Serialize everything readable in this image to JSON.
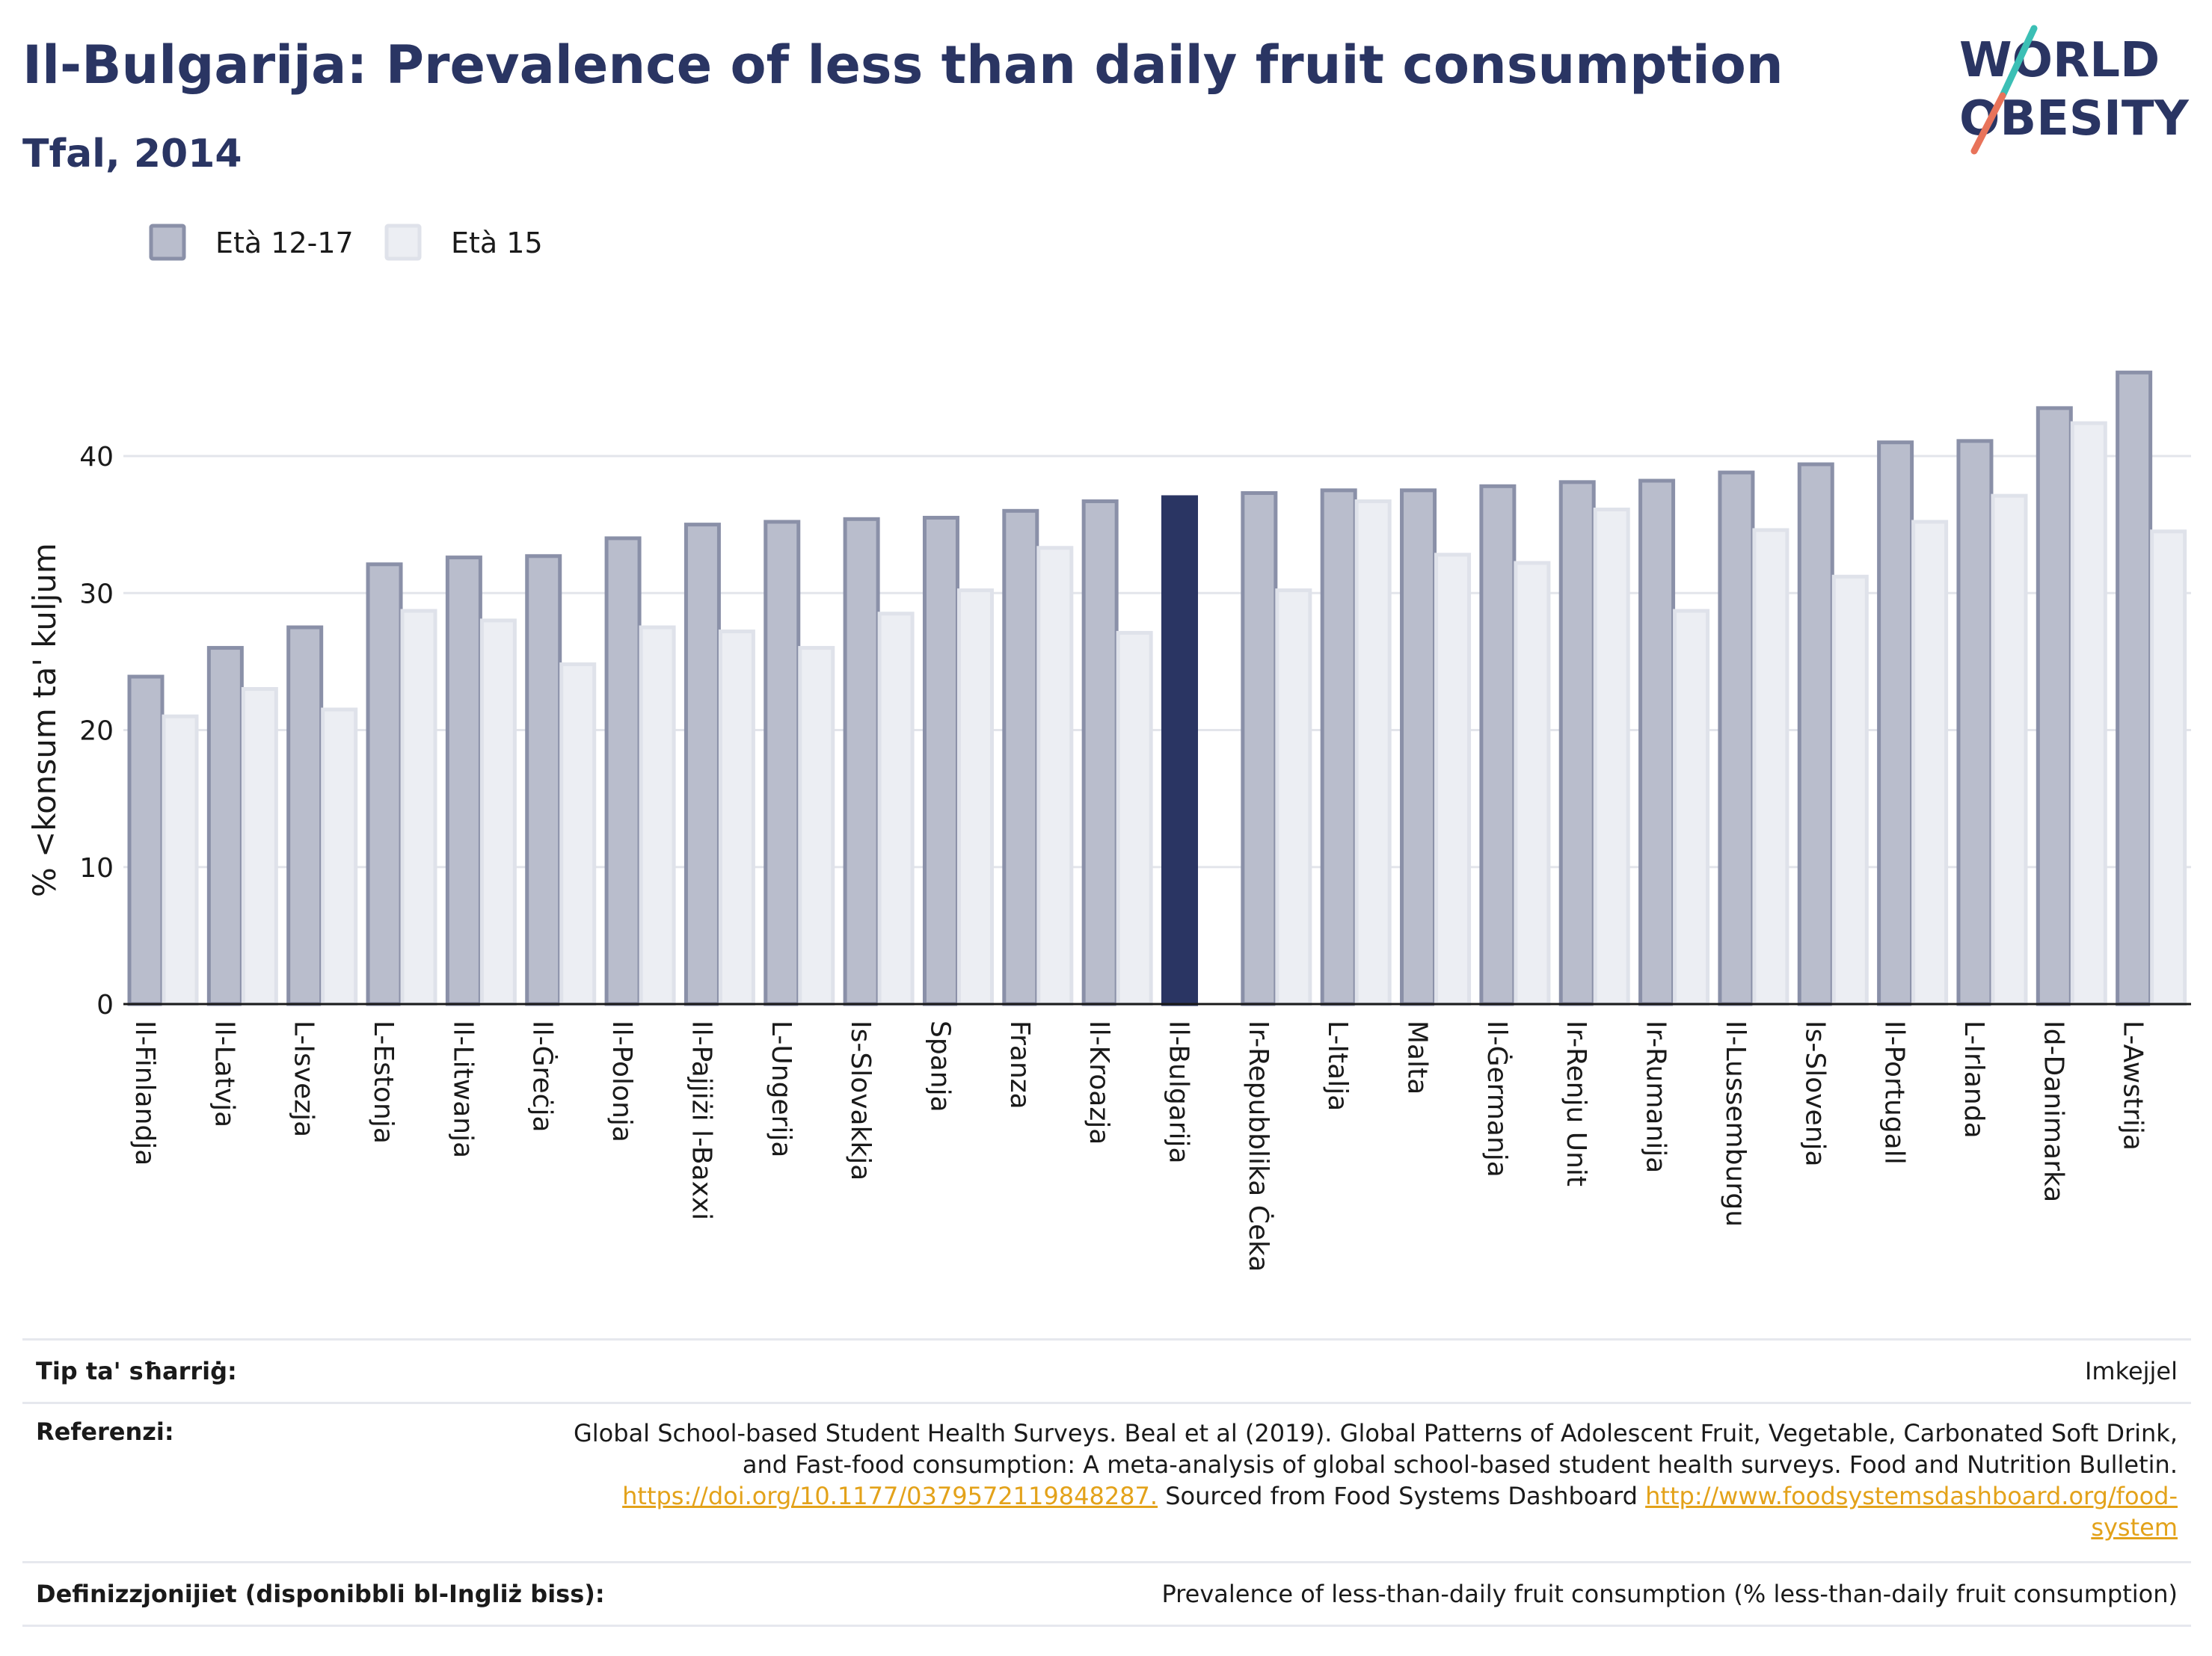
{
  "header": {
    "title": "Il-Bulgarija: Prevalence of less than daily fruit consumption",
    "subtitle": "Tfal, 2014"
  },
  "logo": {
    "line1": "WORLD",
    "line2": "OBESITY",
    "accent_colors": [
      "#3bbfb5",
      "#e8735a"
    ]
  },
  "colors": {
    "series1": "#b9bdcc",
    "series1_edge": "#8a90a8",
    "series2": "#eceef3",
    "series2_edge": "#dfe2ea",
    "highlight": "#2a3563",
    "grid": "#e3e5eb",
    "axis": "#1a1a1a"
  },
  "chart_data": {
    "type": "bar",
    "ylabel": "% <konsum ta' kuljum",
    "ylim": [
      0,
      48
    ],
    "yticks": [
      0,
      10,
      20,
      30,
      40
    ],
    "highlight_category": "Il-Bulgarija",
    "legend_position": "top-left",
    "categories": [
      "Il-Finlandja",
      "Il-Latvja",
      "L-Isvezja",
      "L-Estonja",
      "Il-Litwanja",
      "Il-Ġreċja",
      "Il-Polonja",
      "Il-Pajjiżi l-Baxxi",
      "L-Ungerija",
      "Is-Slovakkja",
      "Spanja",
      "Franza",
      "Il-Kroazja",
      "Il-Bulgarija",
      "Ir-Repubblika Ċeka",
      "L-Italja",
      "Malta",
      "Il-Ġermanja",
      "Ir-Renju Unit",
      "Ir-Rumanija",
      "Il-Lussemburgu",
      "Is-Slovenja",
      "Il-Portugall",
      "L-Irlanda",
      "Id-Danimarka",
      "L-Awstrija"
    ],
    "series": [
      {
        "name": "Età 12-17",
        "values": [
          23.9,
          26.0,
          27.5,
          32.1,
          32.6,
          32.7,
          34.0,
          35.0,
          35.2,
          35.4,
          35.5,
          36.0,
          36.7,
          37.0,
          37.3,
          37.5,
          37.5,
          37.8,
          38.1,
          38.2,
          38.8,
          39.4,
          41.0,
          41.1,
          43.5,
          46.1
        ]
      },
      {
        "name": "Età 15",
        "values": [
          21.0,
          23.0,
          21.5,
          28.7,
          28.0,
          24.8,
          27.5,
          27.2,
          26.0,
          28.5,
          30.2,
          33.3,
          27.1,
          null,
          30.2,
          36.7,
          32.8,
          32.2,
          36.1,
          28.7,
          34.6,
          31.2,
          35.2,
          37.1,
          42.4,
          34.5
        ]
      }
    ]
  },
  "info": {
    "type_label": "Tip ta' sħarriġ:",
    "type_value": "Imkejjel",
    "ref_label": "Referenzi:",
    "ref_line1": "Global School-based Student Health Surveys. Beal et al (2019). Global Patterns of Adolescent Fruit, Vegetable, Carbonated Soft Drink,",
    "ref_line2": "and Fast-food consumption: A meta-analysis of global school-based student health surveys. Food and Nutrition Bulletin.",
    "ref_link1": "https://doi.org/10.1177/0379572119848287.",
    "ref_mid": " Sourced from Food Systems Dashboard ",
    "ref_link2a": "http://www.foodsystemsdashboard.org/food-",
    "ref_link2b": "system",
    "def_label": "Definizzjonijiet (disponibbli bl-Ingliż biss):",
    "def_value": "Prevalence of less-than-daily fruit consumption (% less-than-daily fruit consumption)"
  }
}
